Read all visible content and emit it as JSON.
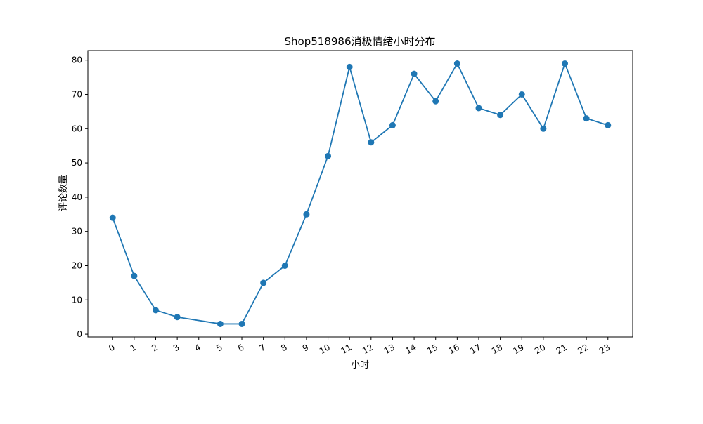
{
  "chart_data": {
    "type": "line",
    "title": "Shop518986消极情绪小时分布",
    "xlabel": "小时",
    "ylabel": "评论数量",
    "x": [
      0,
      1,
      2,
      3,
      5,
      6,
      7,
      8,
      9,
      10,
      11,
      12,
      13,
      14,
      15,
      16,
      17,
      18,
      19,
      20,
      21,
      22,
      23
    ],
    "y": [
      34,
      17,
      7,
      5,
      3,
      3,
      15,
      20,
      35,
      52,
      78,
      56,
      61,
      76,
      68,
      79,
      66,
      64,
      70,
      60,
      79,
      63,
      61
    ],
    "xticks": [
      "0",
      "1",
      "2",
      "3",
      "4",
      "5",
      "6",
      "7",
      "8",
      "9",
      "10",
      "11",
      "12",
      "13",
      "14",
      "15",
      "16",
      "17",
      "18",
      "19",
      "20",
      "21",
      "22",
      "23"
    ],
    "yticks": [
      "0",
      "10",
      "20",
      "30",
      "40",
      "50",
      "60",
      "70",
      "80"
    ],
    "xlim": [
      -1.15,
      24.15
    ],
    "ylim": [
      -0.8,
      82.8
    ],
    "grid": false,
    "line_color": "#1f77b4",
    "marker": "circle"
  }
}
